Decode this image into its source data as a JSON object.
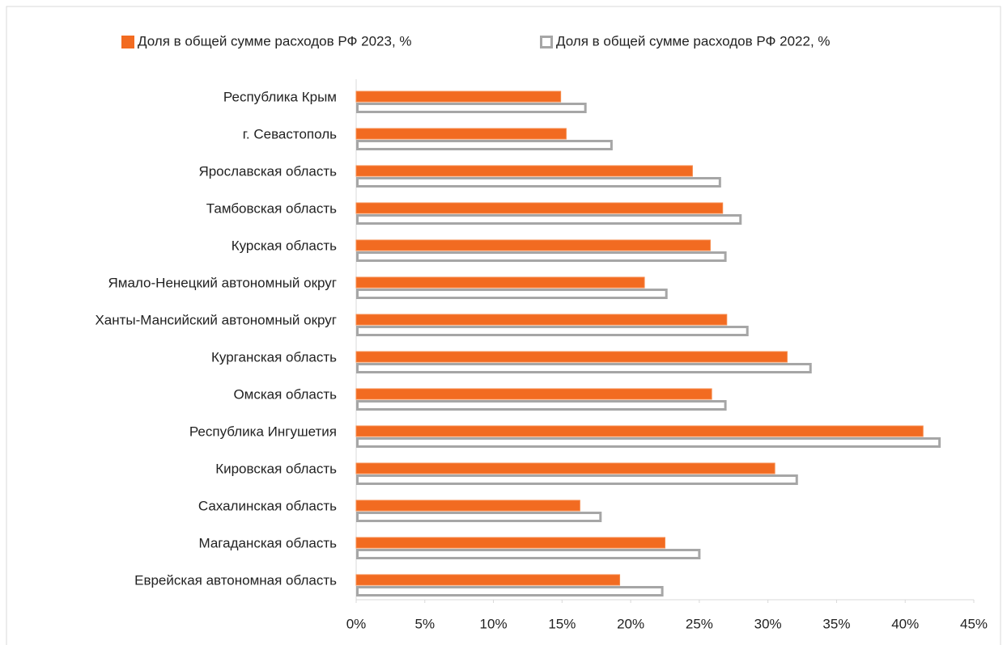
{
  "chart_data": {
    "type": "bar",
    "orientation": "horizontal",
    "categories": [
      "Республика Крым",
      "г. Севастополь",
      "Ярославская область",
      "Тамбовская область",
      "Курская область",
      "Ямало-Ненецкий автономный округ",
      "Ханты-Мансийский автономный округ",
      "Курганская область",
      "Омская область",
      "Республика Ингушетия",
      "Кировская область",
      "Сахалинская область",
      "Магаданская область",
      "Еврейская автономная область"
    ],
    "series": [
      {
        "name": "Доля в общей сумме расходов РФ 2023, %",
        "color": "#f26b21",
        "values": [
          14.9,
          15.3,
          24.5,
          26.7,
          25.8,
          21.0,
          27.0,
          31.4,
          25.9,
          41.3,
          30.5,
          16.3,
          22.5,
          19.2
        ]
      },
      {
        "name": "Доля в общей сумме расходов РФ 2022, %",
        "color": "#a6a6a6",
        "values": [
          16.7,
          18.6,
          26.5,
          28.0,
          26.9,
          22.6,
          28.5,
          33.1,
          26.9,
          42.5,
          32.1,
          17.8,
          25.0,
          22.3
        ]
      }
    ],
    "xlim": [
      0,
      45
    ],
    "xticks": [
      {
        "value": 0,
        "label": "0%"
      },
      {
        "value": 5,
        "label": "5%"
      },
      {
        "value": 10,
        "label": "10%"
      },
      {
        "value": 15,
        "label": "15%"
      },
      {
        "value": 20,
        "label": "20%"
      },
      {
        "value": 25,
        "label": "25%"
      },
      {
        "value": 30,
        "label": "30%"
      },
      {
        "value": 35,
        "label": "35%"
      },
      {
        "value": 40,
        "label": "40%"
      },
      {
        "value": 45,
        "label": "45%"
      }
    ],
    "grid": false,
    "legend": "top"
  }
}
